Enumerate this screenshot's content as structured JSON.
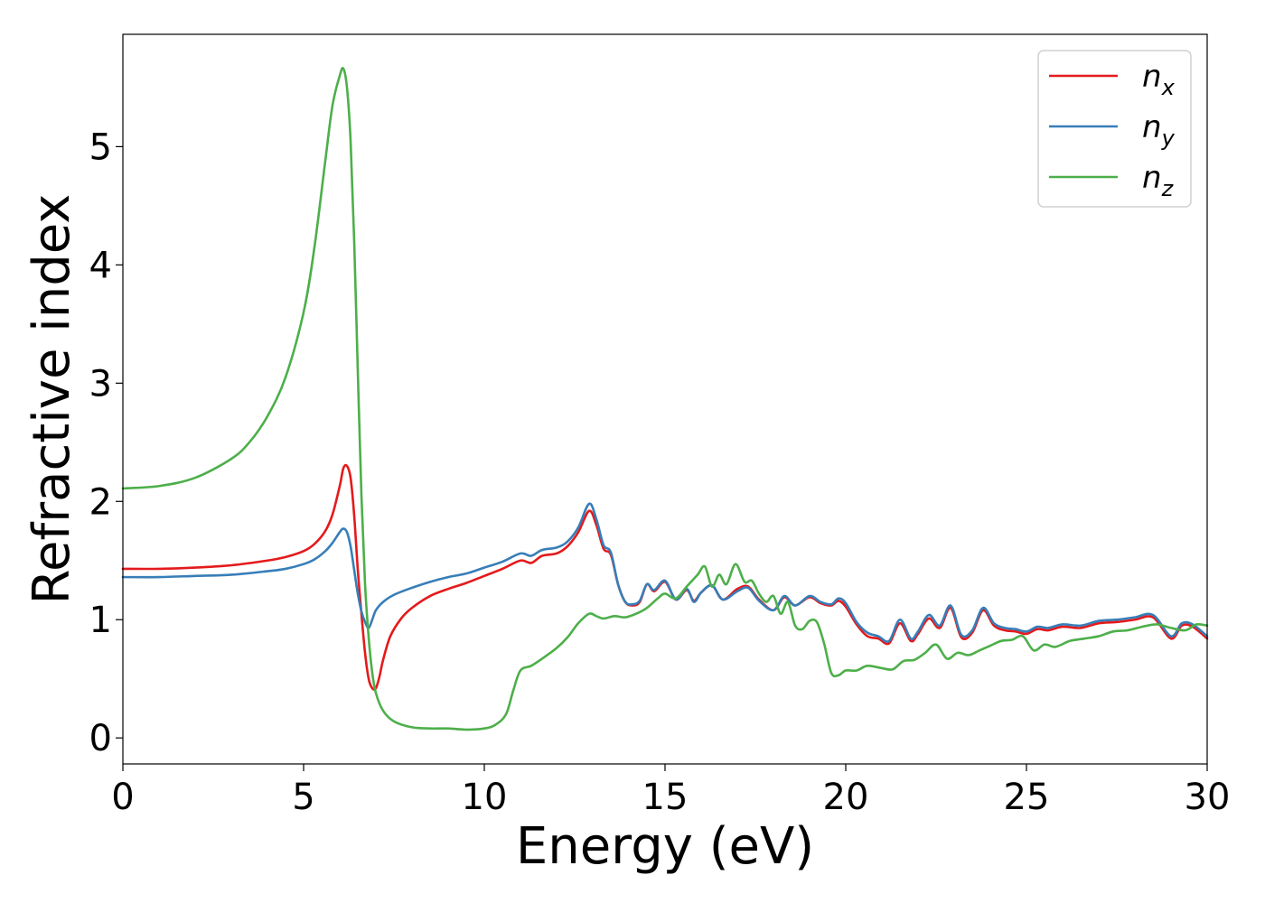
{
  "chart_data": {
    "type": "line",
    "xlabel": "Energy (eV)",
    "ylabel": "Refractive index",
    "xlim": [
      0,
      30
    ],
    "ylim": [
      -0.22,
      5.95
    ],
    "xticks": [
      0,
      5,
      10,
      15,
      20,
      25,
      30
    ],
    "yticks": [
      0,
      1,
      2,
      3,
      4,
      5
    ],
    "grid": false,
    "legend_position": "top-right",
    "series": [
      {
        "name": "n",
        "subscript": "x",
        "color": "#e41a1c",
        "x": [
          0,
          1,
          2,
          3,
          4,
          4.5,
          5,
          5.3,
          5.6,
          5.8,
          6.0,
          6.1,
          6.2,
          6.3,
          6.4,
          6.5,
          6.6,
          6.7,
          6.8,
          6.9,
          7.0,
          7.1,
          7.2,
          7.4,
          7.7,
          8.0,
          8.5,
          9.0,
          9.5,
          10.0,
          10.5,
          11.0,
          11.3,
          11.6,
          12.0,
          12.3,
          12.6,
          12.9,
          13.1,
          13.3,
          13.5,
          13.7,
          13.9,
          14.1,
          14.3,
          14.5,
          14.7,
          15.0,
          15.3,
          15.6,
          15.8,
          16.0,
          16.3,
          16.6,
          17.0,
          17.3,
          17.6,
          18.0,
          18.3,
          18.6,
          19.0,
          19.3,
          19.6,
          19.8,
          20.0,
          20.3,
          20.6,
          20.9,
          21.2,
          21.5,
          21.8,
          22.0,
          22.3,
          22.6,
          22.9,
          23.2,
          23.5,
          23.8,
          24.1,
          24.4,
          24.7,
          25.0,
          25.3,
          25.6,
          26.0,
          26.5,
          27.0,
          27.5,
          28.0,
          28.5,
          29.0,
          29.3,
          29.6,
          30.0
        ],
        "y": [
          1.43,
          1.43,
          1.44,
          1.46,
          1.5,
          1.53,
          1.58,
          1.64,
          1.75,
          1.89,
          2.13,
          2.28,
          2.3,
          2.2,
          1.88,
          1.42,
          1.05,
          0.72,
          0.5,
          0.42,
          0.42,
          0.52,
          0.66,
          0.86,
          1.01,
          1.1,
          1.2,
          1.26,
          1.31,
          1.37,
          1.43,
          1.5,
          1.48,
          1.54,
          1.56,
          1.62,
          1.74,
          1.92,
          1.8,
          1.6,
          1.55,
          1.3,
          1.15,
          1.12,
          1.15,
          1.3,
          1.24,
          1.32,
          1.17,
          1.25,
          1.16,
          1.23,
          1.29,
          1.17,
          1.26,
          1.28,
          1.17,
          1.08,
          1.19,
          1.12,
          1.19,
          1.14,
          1.12,
          1.16,
          1.11,
          0.96,
          0.86,
          0.84,
          0.8,
          0.97,
          0.82,
          0.88,
          1.01,
          0.93,
          1.1,
          0.85,
          0.89,
          1.08,
          0.95,
          0.91,
          0.9,
          0.88,
          0.92,
          0.91,
          0.94,
          0.93,
          0.97,
          0.98,
          1.0,
          1.02,
          0.84,
          0.95,
          0.94,
          0.84
        ]
      },
      {
        "name": "n",
        "subscript": "y",
        "color": "#377eb8",
        "x": [
          0,
          1,
          2,
          3,
          4,
          4.5,
          5,
          5.3,
          5.6,
          5.8,
          6.0,
          6.1,
          6.2,
          6.3,
          6.4,
          6.5,
          6.6,
          6.7,
          6.8,
          6.9,
          7.0,
          7.2,
          7.5,
          8.0,
          8.5,
          9.0,
          9.5,
          10.0,
          10.5,
          11.0,
          11.3,
          11.6,
          12.0,
          12.3,
          12.6,
          12.9,
          13.1,
          13.3,
          13.5,
          13.7,
          13.9,
          14.1,
          14.3,
          14.5,
          14.7,
          15.0,
          15.3,
          15.6,
          15.8,
          16.0,
          16.3,
          16.6,
          17.0,
          17.3,
          17.6,
          18.0,
          18.3,
          18.6,
          19.0,
          19.3,
          19.6,
          19.8,
          20.0,
          20.3,
          20.6,
          20.9,
          21.2,
          21.5,
          21.8,
          22.0,
          22.3,
          22.6,
          22.9,
          23.2,
          23.5,
          23.8,
          24.1,
          24.4,
          24.7,
          25.0,
          25.3,
          25.6,
          26.0,
          26.5,
          27.0,
          27.5,
          28.0,
          28.5,
          29.0,
          29.3,
          29.6,
          30.0
        ],
        "y": [
          1.36,
          1.36,
          1.37,
          1.38,
          1.41,
          1.43,
          1.47,
          1.51,
          1.58,
          1.65,
          1.74,
          1.77,
          1.74,
          1.62,
          1.42,
          1.22,
          1.07,
          0.98,
          0.93,
          1.0,
          1.08,
          1.15,
          1.21,
          1.27,
          1.32,
          1.36,
          1.39,
          1.44,
          1.49,
          1.56,
          1.54,
          1.59,
          1.61,
          1.66,
          1.78,
          1.98,
          1.85,
          1.63,
          1.57,
          1.3,
          1.15,
          1.13,
          1.16,
          1.3,
          1.25,
          1.33,
          1.17,
          1.26,
          1.15,
          1.23,
          1.29,
          1.17,
          1.24,
          1.27,
          1.16,
          1.08,
          1.2,
          1.12,
          1.2,
          1.15,
          1.13,
          1.18,
          1.14,
          0.98,
          0.89,
          0.86,
          0.82,
          1.0,
          0.84,
          0.9,
          1.04,
          0.95,
          1.12,
          0.87,
          0.91,
          1.1,
          0.97,
          0.93,
          0.92,
          0.9,
          0.94,
          0.93,
          0.96,
          0.95,
          0.99,
          1.0,
          1.02,
          1.04,
          0.86,
          0.97,
          0.96,
          0.86
        ]
      },
      {
        "name": "n",
        "subscript": "z",
        "color": "#4daf4a",
        "x": [
          0,
          1,
          2,
          3,
          3.5,
          4,
          4.5,
          5,
          5.3,
          5.6,
          5.8,
          6.0,
          6.1,
          6.2,
          6.3,
          6.4,
          6.5,
          6.6,
          6.7,
          6.8,
          6.9,
          7.0,
          7.2,
          7.5,
          8.0,
          8.5,
          9.0,
          9.5,
          10.0,
          10.3,
          10.6,
          10.8,
          11.0,
          11.3,
          11.6,
          12.0,
          12.3,
          12.6,
          12.9,
          13.1,
          13.3,
          13.6,
          13.9,
          14.2,
          14.5,
          14.8,
          15.0,
          15.3,
          15.6,
          15.9,
          16.1,
          16.3,
          16.5,
          16.7,
          16.95,
          17.2,
          17.4,
          17.6,
          17.8,
          18.0,
          18.2,
          18.4,
          18.6,
          18.8,
          19.0,
          19.2,
          19.4,
          19.6,
          19.8,
          20.0,
          20.3,
          20.6,
          21.0,
          21.3,
          21.6,
          21.9,
          22.2,
          22.5,
          22.8,
          23.1,
          23.4,
          23.7,
          24.0,
          24.3,
          24.6,
          24.9,
          25.2,
          25.5,
          25.8,
          26.2,
          26.6,
          27.0,
          27.4,
          27.8,
          28.2,
          28.6,
          29.0,
          29.4,
          29.7,
          30.0
        ],
        "y": [
          2.11,
          2.13,
          2.2,
          2.36,
          2.5,
          2.72,
          3.05,
          3.6,
          4.15,
          4.88,
          5.35,
          5.6,
          5.66,
          5.5,
          5.05,
          4.2,
          3.1,
          2.05,
          1.3,
          0.85,
          0.55,
          0.38,
          0.23,
          0.14,
          0.09,
          0.08,
          0.08,
          0.07,
          0.08,
          0.11,
          0.2,
          0.4,
          0.57,
          0.61,
          0.67,
          0.76,
          0.85,
          0.97,
          1.05,
          1.03,
          1.01,
          1.03,
          1.02,
          1.05,
          1.1,
          1.18,
          1.22,
          1.18,
          1.28,
          1.38,
          1.45,
          1.28,
          1.38,
          1.3,
          1.47,
          1.32,
          1.33,
          1.22,
          1.15,
          1.2,
          1.05,
          1.15,
          0.95,
          0.92,
          0.99,
          0.98,
          0.8,
          0.55,
          0.53,
          0.57,
          0.57,
          0.61,
          0.59,
          0.58,
          0.65,
          0.66,
          0.72,
          0.79,
          0.67,
          0.72,
          0.7,
          0.74,
          0.78,
          0.82,
          0.83,
          0.86,
          0.74,
          0.79,
          0.77,
          0.82,
          0.84,
          0.86,
          0.9,
          0.91,
          0.94,
          0.96,
          0.93,
          0.91,
          0.96,
          0.95
        ]
      }
    ]
  }
}
